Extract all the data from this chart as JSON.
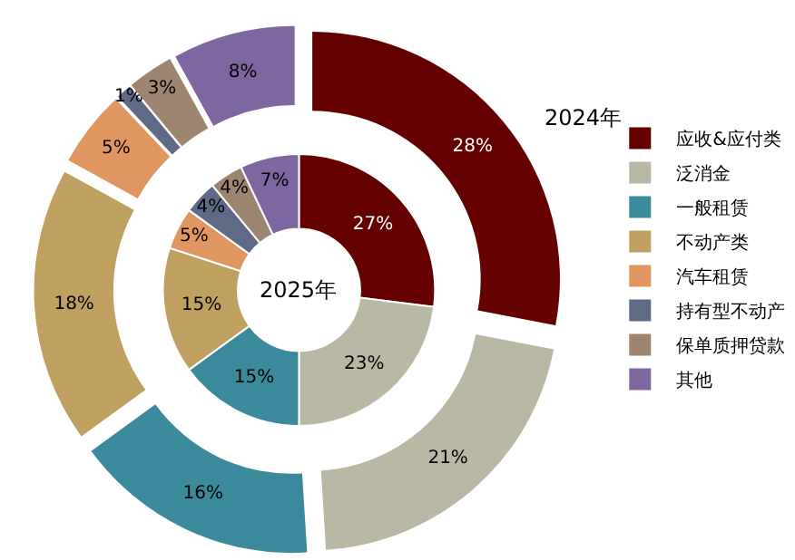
{
  "chart_data": {
    "type": "donut",
    "categories": [
      "应收&应付类",
      "泛消金",
      "一般租赁",
      "不动产类",
      "汽车租赁",
      "持有型不动产",
      "保单质押贷款",
      "其他"
    ],
    "colors": [
      "#650000",
      "#b9b8a5",
      "#3b8a9b",
      "#c0a060",
      "#df9660",
      "#5f6a87",
      "#9e8570",
      "#7e66a0"
    ],
    "series": [
      {
        "name": "2024年",
        "values": [
          28,
          21,
          16,
          18,
          5,
          1,
          3,
          8
        ],
        "value_labels": [
          "28%",
          "21%",
          "16%",
          "18%",
          "5%",
          "1%",
          "3%",
          "8%"
        ]
      },
      {
        "name": "2025年",
        "values": [
          27,
          23,
          15,
          15,
          5,
          4,
          4,
          7
        ],
        "value_labels": [
          "27%",
          "23%",
          "15%",
          "15%",
          "5%",
          "4%",
          "4%",
          "7%"
        ]
      }
    ],
    "legend": "right"
  }
}
